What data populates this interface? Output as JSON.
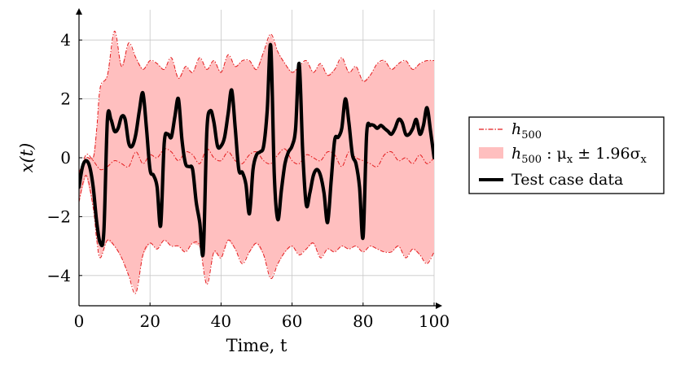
{
  "chart_data": {
    "type": "line",
    "xlabel": "Time, t",
    "ylabel": "x(t)",
    "xlim": [
      0,
      100
    ],
    "ylim": [
      -5,
      5
    ],
    "xticks": [
      0,
      20,
      40,
      60,
      80,
      100
    ],
    "yticks": [
      -4,
      -2,
      0,
      2,
      4
    ],
    "grid": true,
    "legend_position": "right",
    "series": [
      {
        "name": "h500",
        "kind": "mean",
        "color": "#e31a1c",
        "style": "dash-dot",
        "x": [
          0,
          2,
          4,
          6,
          8,
          10,
          12,
          14,
          16,
          18,
          20,
          22,
          24,
          26,
          28,
          30,
          32,
          34,
          36,
          38,
          40,
          42,
          44,
          46,
          48,
          50,
          52,
          54,
          56,
          58,
          60,
          62,
          64,
          66,
          68,
          70,
          72,
          74,
          76,
          78,
          80,
          82,
          84,
          86,
          88,
          90,
          92,
          94,
          96,
          98,
          100
        ],
        "y": [
          -0.6,
          0.1,
          -0.1,
          -0.4,
          -0.3,
          -0.1,
          -0.2,
          -0.3,
          0.2,
          -0.2,
          0.1,
          0.0,
          0.3,
          0.2,
          -0.1,
          0.2,
          0.1,
          -0.2,
          0.3,
          0.0,
          -0.1,
          0.2,
          -0.1,
          -0.2,
          0.1,
          0.2,
          -0.1,
          -0.2,
          0.1,
          0.3,
          -0.1,
          -0.2,
          0.1,
          0.0,
          -0.1,
          0.2,
          0.1,
          -0.3,
          0.2,
          0.0,
          -0.1,
          -0.2,
          -0.3,
          0.1,
          0.2,
          -0.1,
          0.0,
          -0.2,
          0.1,
          -0.2,
          0.0
        ]
      },
      {
        "name": "h500 : μx ± 1.96σx",
        "kind": "band",
        "color": "#ffbfbf",
        "x": [
          0,
          2,
          4,
          5,
          6,
          8,
          10,
          12,
          14,
          16,
          18,
          20,
          22,
          24,
          26,
          28,
          30,
          32,
          34,
          36,
          38,
          40,
          42,
          44,
          46,
          48,
          50,
          52,
          54,
          56,
          58,
          60,
          62,
          64,
          66,
          68,
          70,
          72,
          74,
          76,
          78,
          80,
          82,
          84,
          86,
          88,
          90,
          92,
          94,
          96,
          98,
          100
        ],
        "upper": [
          -0.5,
          0.0,
          0.0,
          1.0,
          2.4,
          2.8,
          4.3,
          3.1,
          3.9,
          3.4,
          3.0,
          3.3,
          3.2,
          3.0,
          3.4,
          2.7,
          3.1,
          2.9,
          3.4,
          3.0,
          3.3,
          2.9,
          3.5,
          3.1,
          3.3,
          3.3,
          3.0,
          3.6,
          4.2,
          3.6,
          3.2,
          2.9,
          3.1,
          3.3,
          2.9,
          3.2,
          2.8,
          3.0,
          3.4,
          2.9,
          3.1,
          2.6,
          2.8,
          3.2,
          3.3,
          3.0,
          3.2,
          3.3,
          3.0,
          3.2,
          3.3,
          3.3
        ],
        "lower": [
          -1.5,
          -0.6,
          -1.7,
          -2.8,
          -3.4,
          -2.8,
          -3.0,
          -3.4,
          -4.0,
          -4.6,
          -3.3,
          -2.9,
          -3.1,
          -2.8,
          -3.0,
          -3.0,
          -3.2,
          -2.9,
          -3.0,
          -4.3,
          -3.2,
          -3.4,
          -2.8,
          -3.1,
          -3.6,
          -3.2,
          -2.9,
          -3.3,
          -4.1,
          -3.6,
          -3.2,
          -3.0,
          -3.3,
          -3.1,
          -2.9,
          -3.4,
          -3.1,
          -3.2,
          -3.0,
          -3.1,
          -3.0,
          -3.2,
          -3.0,
          -3.1,
          -3.2,
          -3.2,
          -3.0,
          -3.4,
          -3.1,
          -3.3,
          -3.6,
          -3.2
        ]
      },
      {
        "name": "Test case data",
        "kind": "line",
        "color": "#000000",
        "style": "solid",
        "x": [
          0,
          1,
          2,
          3,
          4,
          5,
          6,
          7,
          8,
          9,
          10,
          11,
          12,
          13,
          14,
          15,
          16,
          17,
          18,
          19,
          20,
          21,
          22,
          23,
          24,
          25,
          26,
          27,
          28,
          29,
          30,
          31,
          32,
          33,
          34,
          35,
          36,
          37,
          38,
          39,
          40,
          41,
          42,
          43,
          44,
          45,
          46,
          47,
          48,
          49,
          50,
          51,
          52,
          53,
          54,
          55,
          56,
          57,
          58,
          59,
          60,
          61,
          62,
          63,
          64,
          65,
          66,
          67,
          68,
          69,
          70,
          71,
          72,
          73,
          74,
          75,
          76,
          77,
          78,
          79,
          80,
          81,
          82,
          83,
          84,
          85,
          86,
          87,
          88,
          89,
          90,
          91,
          92,
          93,
          94,
          95,
          96,
          97,
          98,
          99,
          100
        ],
        "y": [
          -1.0,
          -0.3,
          -0.1,
          -0.3,
          -1.0,
          -2.2,
          -2.9,
          -2.5,
          1.3,
          1.3,
          0.9,
          1.0,
          1.4,
          1.3,
          0.5,
          0.4,
          0.8,
          1.6,
          2.2,
          1.0,
          -0.4,
          -0.6,
          -1.0,
          -2.3,
          0.5,
          0.8,
          0.7,
          1.4,
          2.0,
          0.6,
          -0.2,
          -0.3,
          -0.4,
          -1.5,
          -2.2,
          -3.2,
          0.9,
          1.6,
          1.2,
          0.4,
          0.4,
          0.7,
          1.5,
          2.3,
          1.0,
          -0.4,
          -0.5,
          -0.9,
          -1.9,
          -0.4,
          0.1,
          0.2,
          0.4,
          1.6,
          3.8,
          -0.6,
          -2.1,
          -1.1,
          -0.2,
          0.2,
          0.4,
          1.0,
          3.2,
          0.2,
          -1.6,
          -1.2,
          -0.6,
          -0.4,
          -0.6,
          -1.2,
          -2.2,
          -0.8,
          0.6,
          0.7,
          1.0,
          2.0,
          1.2,
          0.1,
          -0.2,
          -1.0,
          -2.7,
          0.8,
          1.1,
          1.1,
          1.0,
          1.1,
          1.0,
          0.9,
          0.8,
          1.0,
          1.3,
          1.2,
          0.8,
          0.8,
          1.0,
          1.3,
          0.8,
          1.1,
          1.7,
          0.9,
          0.0
        ]
      }
    ]
  },
  "legend": {
    "mean": {
      "main": "h",
      "sub": "500"
    },
    "band": {
      "main": "h",
      "sub": "500",
      "rest": " : μ",
      "sub2": "x",
      "rest2": " ± 1.96σ",
      "sub3": "x"
    },
    "data": {
      "label": "Test case data"
    }
  }
}
